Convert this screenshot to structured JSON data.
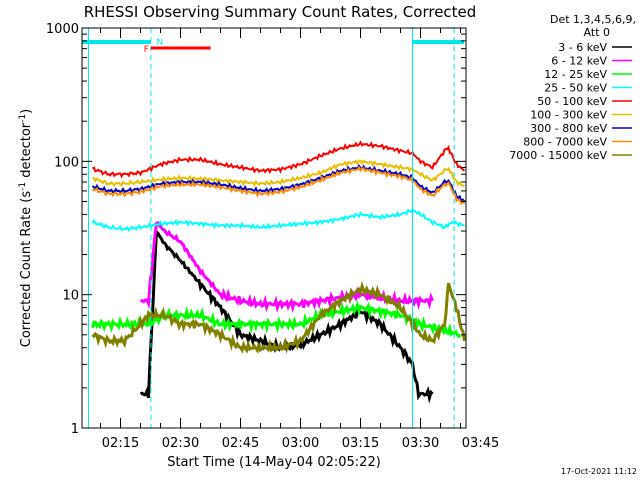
{
  "chart_data": {
    "type": "line",
    "title": "RHESSI Observing Summary Count Rates, Corrected",
    "xlabel": "Start Time (14-May-04 02:05:22)",
    "ylabel_text": "Corrected Count Rate (s",
    "ylabel_sup1": "-1",
    "ylabel_mid": " detector",
    "ylabel_sup2": "-1",
    "ylabel_end": ")",
    "yscale": "log",
    "ylim": [
      1,
      1000
    ],
    "xlim_minutes": [
      5.37,
      101.37
    ],
    "y_ticks": [
      {
        "value": 1,
        "label": "1"
      },
      {
        "value": 10,
        "label": "10"
      },
      {
        "value": 100,
        "label": "100"
      },
      {
        "value": 1000,
        "label": "1000"
      }
    ],
    "x_ticks": [
      {
        "minute": 15,
        "label": "02:15"
      },
      {
        "minute": 30,
        "label": "02:30"
      },
      {
        "minute": 45,
        "label": "02:45"
      },
      {
        "minute": 60,
        "label": "03:00"
      },
      {
        "minute": 75,
        "label": "03:15"
      },
      {
        "minute": 90,
        "label": "03:30"
      },
      {
        "minute": 105,
        "label": "03:45"
      }
    ],
    "legend_header": [
      "Det 1,3,4,5,6,9,",
      "Att 0"
    ],
    "legend_placement": "right",
    "series": [
      {
        "name": "3 - 6 keV",
        "color": "#000000",
        "points": [
          [
            20,
            1.8
          ],
          [
            22,
            1.8
          ],
          [
            24,
            30
          ],
          [
            26,
            24
          ],
          [
            30,
            18
          ],
          [
            35,
            12
          ],
          [
            40,
            8
          ],
          [
            45,
            5
          ],
          [
            50,
            4.5
          ],
          [
            55,
            4
          ],
          [
            60,
            4.2
          ],
          [
            65,
            5
          ],
          [
            70,
            6
          ],
          [
            75,
            7.5
          ],
          [
            80,
            6
          ],
          [
            85,
            4
          ],
          [
            88,
            3
          ],
          [
            89.5,
            1.8
          ],
          [
            93,
            1.8
          ]
        ]
      },
      {
        "name": "6 - 12 keV",
        "color": "#ff00ff",
        "points": [
          [
            20,
            9
          ],
          [
            22,
            9
          ],
          [
            24,
            35
          ],
          [
            26,
            30
          ],
          [
            30,
            25
          ],
          [
            35,
            15
          ],
          [
            40,
            10
          ],
          [
            45,
            9
          ],
          [
            50,
            8.5
          ],
          [
            55,
            8.5
          ],
          [
            60,
            8.5
          ],
          [
            65,
            9
          ],
          [
            70,
            9.5
          ],
          [
            75,
            10
          ],
          [
            80,
            9.5
          ],
          [
            85,
            9
          ],
          [
            88,
            9
          ],
          [
            89.5,
            9
          ],
          [
            93,
            9
          ]
        ]
      },
      {
        "name": "12 - 25 keV",
        "color": "#00ff00",
        "points": [
          [
            8,
            6
          ],
          [
            12,
            6
          ],
          [
            16,
            6
          ],
          [
            20,
            6
          ],
          [
            22,
            6
          ],
          [
            26,
            7
          ],
          [
            30,
            7
          ],
          [
            35,
            7
          ],
          [
            40,
            6
          ],
          [
            45,
            6
          ],
          [
            50,
            6
          ],
          [
            55,
            6
          ],
          [
            60,
            6
          ],
          [
            65,
            7
          ],
          [
            70,
            7.5
          ],
          [
            75,
            8
          ],
          [
            80,
            7.5
          ],
          [
            85,
            7
          ],
          [
            88,
            6.5
          ],
          [
            90,
            6
          ],
          [
            95,
            5.5
          ],
          [
            100,
            5
          ]
        ]
      },
      {
        "name": "25 - 50 keV",
        "color": "#00ffff",
        "points": [
          [
            8,
            35
          ],
          [
            12,
            32
          ],
          [
            16,
            31
          ],
          [
            20,
            32
          ],
          [
            25,
            34
          ],
          [
            30,
            35
          ],
          [
            35,
            34
          ],
          [
            40,
            33
          ],
          [
            45,
            33
          ],
          [
            50,
            32
          ],
          [
            55,
            33
          ],
          [
            60,
            34
          ],
          [
            65,
            35
          ],
          [
            70,
            37
          ],
          [
            75,
            40
          ],
          [
            80,
            38
          ],
          [
            85,
            40
          ],
          [
            88,
            43
          ],
          [
            90,
            40
          ],
          [
            93,
            35
          ],
          [
            96,
            32
          ],
          [
            98,
            35
          ],
          [
            101,
            33
          ]
        ]
      },
      {
        "name": "50 - 100 keV",
        "color": "#ff0000",
        "points": [
          [
            8,
            88
          ],
          [
            12,
            80
          ],
          [
            16,
            80
          ],
          [
            20,
            82
          ],
          [
            25,
            95
          ],
          [
            30,
            103
          ],
          [
            35,
            103
          ],
          [
            40,
            95
          ],
          [
            45,
            90
          ],
          [
            50,
            85
          ],
          [
            55,
            87
          ],
          [
            60,
            95
          ],
          [
            65,
            110
          ],
          [
            70,
            125
          ],
          [
            75,
            135
          ],
          [
            80,
            130
          ],
          [
            85,
            120
          ],
          [
            88,
            115
          ],
          [
            90,
            100
          ],
          [
            93,
            90
          ],
          [
            96,
            120
          ],
          [
            97,
            125
          ],
          [
            99,
            95
          ],
          [
            101,
            85
          ]
        ]
      },
      {
        "name": "100 - 300 keV",
        "color": "#e8c000",
        "points": [
          [
            8,
            75
          ],
          [
            12,
            68
          ],
          [
            16,
            68
          ],
          [
            20,
            70
          ],
          [
            25,
            73
          ],
          [
            30,
            75
          ],
          [
            35,
            74
          ],
          [
            40,
            72
          ],
          [
            45,
            70
          ],
          [
            50,
            68
          ],
          [
            55,
            70
          ],
          [
            60,
            75
          ],
          [
            65,
            82
          ],
          [
            70,
            95
          ],
          [
            75,
            100
          ],
          [
            80,
            95
          ],
          [
            85,
            90
          ],
          [
            88,
            87
          ],
          [
            90,
            80
          ],
          [
            93,
            72
          ],
          [
            96,
            85
          ],
          [
            97,
            88
          ],
          [
            99,
            70
          ],
          [
            101,
            65
          ]
        ]
      },
      {
        "name": "300 - 800 keV",
        "color": "#0000cc",
        "points": [
          [
            8,
            65
          ],
          [
            12,
            60
          ],
          [
            16,
            60
          ],
          [
            20,
            62
          ],
          [
            25,
            68
          ],
          [
            30,
            70
          ],
          [
            35,
            70
          ],
          [
            40,
            67
          ],
          [
            45,
            63
          ],
          [
            50,
            60
          ],
          [
            55,
            62
          ],
          [
            60,
            67
          ],
          [
            65,
            75
          ],
          [
            70,
            85
          ],
          [
            75,
            90
          ],
          [
            80,
            85
          ],
          [
            85,
            80
          ],
          [
            88,
            75
          ],
          [
            90,
            65
          ],
          [
            93,
            58
          ],
          [
            96,
            70
          ],
          [
            97,
            72
          ],
          [
            99,
            55
          ],
          [
            101,
            50
          ]
        ]
      },
      {
        "name": "800 - 7000 keV",
        "color": "#ff8c00",
        "points": [
          [
            8,
            62
          ],
          [
            12,
            57
          ],
          [
            16,
            57
          ],
          [
            20,
            59
          ],
          [
            25,
            65
          ],
          [
            30,
            67
          ],
          [
            35,
            67
          ],
          [
            40,
            64
          ],
          [
            45,
            60
          ],
          [
            50,
            57
          ],
          [
            55,
            59
          ],
          [
            60,
            64
          ],
          [
            65,
            72
          ],
          [
            70,
            82
          ],
          [
            75,
            88
          ],
          [
            80,
            82
          ],
          [
            85,
            77
          ],
          [
            88,
            72
          ],
          [
            90,
            62
          ],
          [
            93,
            55
          ],
          [
            96,
            67
          ],
          [
            97,
            69
          ],
          [
            99,
            52
          ],
          [
            101,
            48
          ]
        ]
      },
      {
        "name": "7000 - 15000 keV",
        "color": "#808000",
        "points": [
          [
            8,
            5
          ],
          [
            12,
            4.5
          ],
          [
            16,
            4.5
          ],
          [
            20,
            6
          ],
          [
            22,
            7
          ],
          [
            26,
            7
          ],
          [
            30,
            6
          ],
          [
            35,
            6
          ],
          [
            40,
            5
          ],
          [
            45,
            4
          ],
          [
            50,
            4
          ],
          [
            55,
            4
          ],
          [
            60,
            4.5
          ],
          [
            65,
            7
          ],
          [
            70,
            9
          ],
          [
            75,
            11
          ],
          [
            80,
            10
          ],
          [
            85,
            8
          ],
          [
            88,
            6
          ],
          [
            90,
            5
          ],
          [
            93,
            4.5
          ],
          [
            96,
            6
          ],
          [
            97,
            12
          ],
          [
            99,
            8
          ],
          [
            101,
            4.5
          ]
        ]
      }
    ],
    "annotations": [
      {
        "text": "N",
        "color": "#00e8e8"
      },
      {
        "text": "F",
        "color": "#ff0000"
      }
    ],
    "timestamp": "17-Oct-2021 11:12"
  }
}
